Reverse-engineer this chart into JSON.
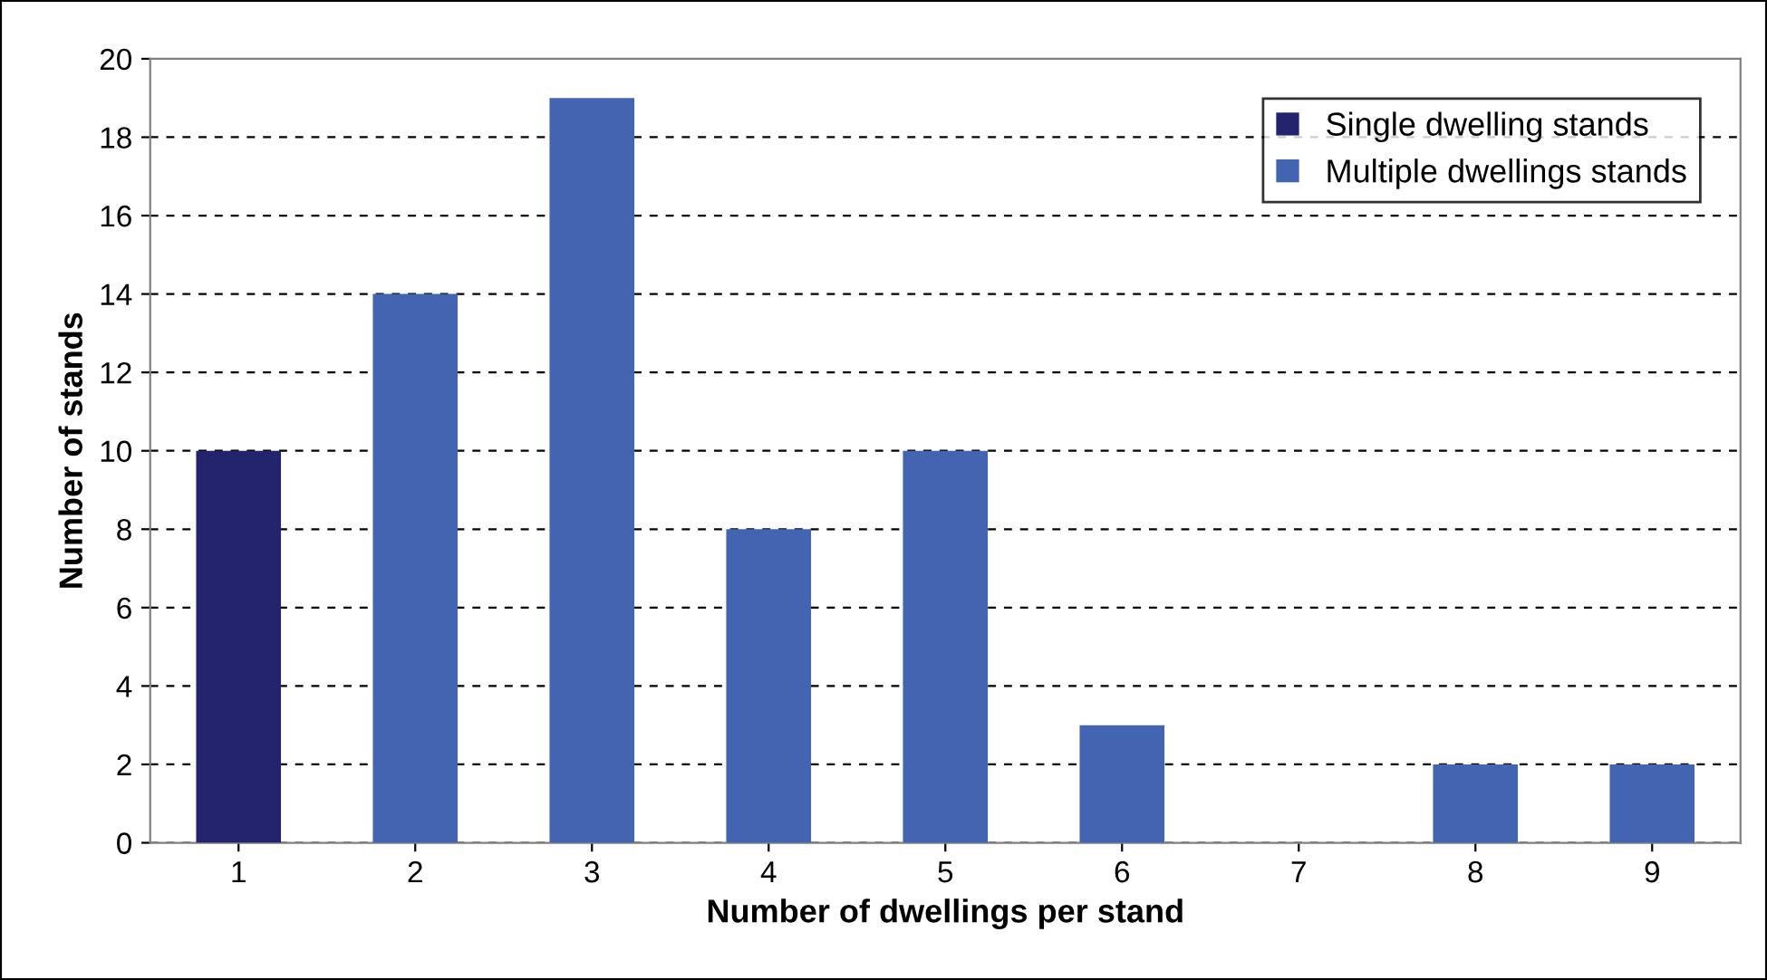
{
  "chart_data": {
    "type": "bar",
    "xlabel": "Number of dwellings per stand",
    "ylabel": "Number of stands",
    "categories": [
      "1",
      "2",
      "3",
      "4",
      "5",
      "6",
      "7",
      "8",
      "9"
    ],
    "series": [
      {
        "name": "Single dwelling stands",
        "color": "#24246e",
        "values": [
          10,
          null,
          null,
          null,
          null,
          null,
          null,
          null,
          null
        ]
      },
      {
        "name": "Multiple dwellings stands",
        "color": "#4364b0",
        "values": [
          null,
          14,
          19,
          8,
          10,
          3,
          0,
          2,
          2
        ]
      }
    ],
    "ylim": [
      0,
      20
    ],
    "yticks": [
      0,
      2,
      4,
      6,
      8,
      10,
      12,
      14,
      16,
      18,
      20
    ],
    "grid": "y",
    "legend": "top right"
  }
}
